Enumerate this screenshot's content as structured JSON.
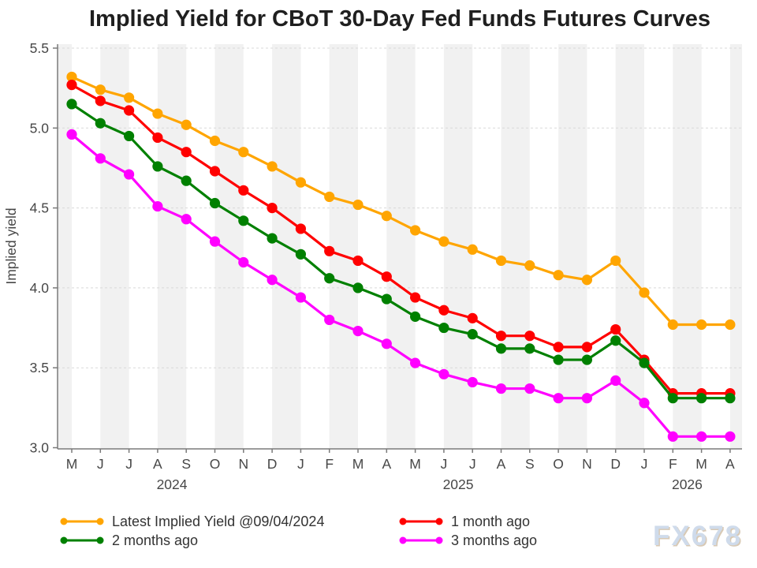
{
  "title": "Implied Yield for CBoT 30-Day Fed Funds Futures Curves",
  "watermark": "FX678",
  "colors": {
    "stripe": "#f1f1f1",
    "grid": "#d9d9d9",
    "axis": "#7a7a7a",
    "tick_label": "#474747",
    "title": "#1f1f1f",
    "legend_text": "#333333",
    "watermark": "#cfdbeb"
  },
  "chart_data": {
    "type": "line",
    "title": "Implied Yield for CBoT 30-Day Fed Funds Futures Curves",
    "xlabel": "",
    "ylabel": "Implied yield",
    "ylim": [
      3.0,
      5.5
    ],
    "ytick_step": 0.5,
    "yticks": [
      "3.0",
      "3.5",
      "4.0",
      "4.5",
      "5.0",
      "5.5"
    ],
    "grid": "horizontal-dashed",
    "background": "alternating vertical month stripes",
    "legend_position": "bottom",
    "x_months": [
      "M",
      "J",
      "J",
      "A",
      "S",
      "O",
      "N",
      "D",
      "J",
      "F",
      "M",
      "A",
      "M",
      "J",
      "J",
      "A",
      "S",
      "O",
      "N",
      "D",
      "J",
      "F",
      "M",
      "A"
    ],
    "x_years": [
      {
        "label": "2024",
        "center_index": 3.5
      },
      {
        "label": "2025",
        "center_index": 13.5
      },
      {
        "label": "2026",
        "center_index": 21.5
      }
    ],
    "series": [
      {
        "name": "Latest Implied Yield @09/04/2024",
        "color": "#FFA500",
        "values": [
          5.32,
          5.24,
          5.19,
          5.09,
          5.02,
          4.92,
          4.85,
          4.76,
          4.66,
          4.57,
          4.52,
          4.45,
          4.36,
          4.29,
          4.24,
          4.17,
          4.14,
          4.08,
          4.05,
          4.17,
          3.97,
          3.77,
          3.77,
          3.77
        ]
      },
      {
        "name": "1 month ago",
        "color": "#FF0000",
        "values": [
          5.27,
          5.17,
          5.11,
          4.94,
          4.85,
          4.73,
          4.61,
          4.5,
          4.37,
          4.23,
          4.17,
          4.07,
          3.94,
          3.86,
          3.81,
          3.7,
          3.7,
          3.63,
          3.63,
          3.74,
          3.55,
          3.34,
          3.34,
          3.34
        ]
      },
      {
        "name": "2 months ago",
        "color": "#008000",
        "values": [
          5.15,
          5.03,
          4.95,
          4.76,
          4.67,
          4.53,
          4.42,
          4.31,
          4.21,
          4.06,
          4.0,
          3.93,
          3.82,
          3.75,
          3.71,
          3.62,
          3.62,
          3.55,
          3.55,
          3.67,
          3.53,
          3.31,
          3.31,
          3.31
        ]
      },
      {
        "name": "3 months ago",
        "color": "#FF00FF",
        "values": [
          4.96,
          4.81,
          4.71,
          4.51,
          4.43,
          4.29,
          4.16,
          4.05,
          3.94,
          3.8,
          3.73,
          3.65,
          3.53,
          3.46,
          3.41,
          3.37,
          3.37,
          3.31,
          3.31,
          3.42,
          3.28,
          3.07,
          3.07,
          3.07
        ]
      }
    ]
  }
}
